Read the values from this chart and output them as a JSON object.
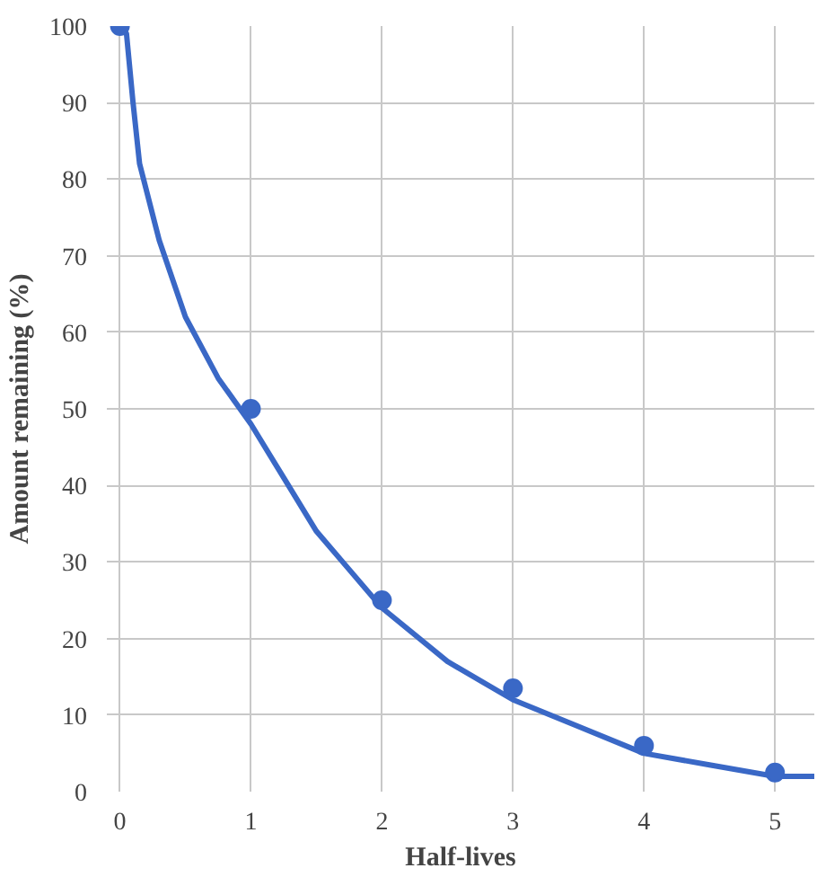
{
  "chart_data": {
    "type": "line",
    "xlabel": "Half-lives",
    "ylabel": "Amount remaining (%)",
    "xlim": [
      -0.1,
      5.3
    ],
    "ylim": [
      0,
      100
    ],
    "xticks": [
      0,
      1,
      2,
      3,
      4,
      5
    ],
    "yticks": [
      0,
      10,
      20,
      30,
      40,
      50,
      60,
      70,
      80,
      90,
      100
    ],
    "grid": true,
    "series": [
      {
        "color": "#3a68c6",
        "marker": "none",
        "x": [
          0,
          0.05,
          0.1,
          0.15,
          0.3,
          0.5,
          0.75,
          1,
          1.25,
          1.5,
          1.75,
          2,
          2.5,
          3,
          3.5,
          4,
          4.5,
          5,
          5.3
        ],
        "values": [
          100,
          99,
          90,
          82,
          72,
          62,
          54,
          48,
          41,
          34,
          29,
          24,
          17,
          12,
          8.5,
          5,
          3.5,
          2,
          2
        ]
      },
      {
        "type": "scatter",
        "color": "#3a68c6",
        "marker": "circle",
        "x": [
          0,
          1,
          2,
          3,
          4,
          5
        ],
        "values": [
          100,
          50,
          25,
          13.5,
          6,
          2.5
        ]
      }
    ]
  }
}
